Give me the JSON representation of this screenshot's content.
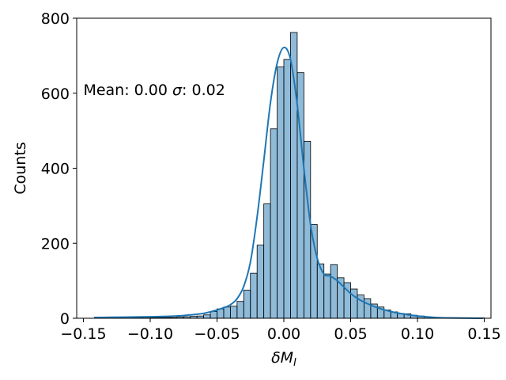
{
  "chart_data": {
    "type": "bar",
    "title": "",
    "xlabel": "δM_I",
    "xlabel_parts": {
      "base": "δM",
      "sub": "I"
    },
    "ylabel": "Counts",
    "xlim": [
      -0.155,
      0.155
    ],
    "ylim": [
      0,
      800
    ],
    "x_ticks": [
      -0.15,
      -0.1,
      -0.05,
      0.0,
      0.05,
      0.1,
      0.15
    ],
    "x_tick_labels": [
      "−0.15",
      "−0.10",
      "−0.05",
      "0.00",
      "0.05",
      "0.10",
      "0.15"
    ],
    "y_ticks": [
      0,
      200,
      400,
      600,
      800
    ],
    "y_tick_labels": [
      "0",
      "200",
      "400",
      "600",
      "800"
    ],
    "grid": false,
    "bar_color": "#1f77b4",
    "bar_fill_opacity": 0.5,
    "kde_color": "#1f77b4",
    "annotation": {
      "parts": [
        "Mean: 0.00 ",
        "σ",
        ": 0.02"
      ],
      "x": -0.15,
      "y": 610
    },
    "bin_width": 0.005,
    "bins_start": [
      -0.14,
      -0.135,
      -0.13,
      -0.125,
      -0.12,
      -0.115,
      -0.11,
      -0.105,
      -0.1,
      -0.095,
      -0.09,
      -0.085,
      -0.08,
      -0.075,
      -0.07,
      -0.065,
      -0.06,
      -0.055,
      -0.05,
      -0.045,
      -0.04,
      -0.035,
      -0.03,
      -0.025,
      -0.02,
      -0.015,
      -0.01,
      -0.005,
      0.0,
      0.005,
      0.01,
      0.015,
      0.02,
      0.025,
      0.03,
      0.035,
      0.04,
      0.045,
      0.05,
      0.055,
      0.06,
      0.065,
      0.07,
      0.075,
      0.08,
      0.085,
      0.09,
      0.095,
      0.1,
      0.105,
      0.11,
      0.115,
      0.12,
      0.125,
      0.13,
      0.135,
      0.14,
      0.145
    ],
    "counts": [
      1,
      1,
      1,
      1,
      1,
      2,
      2,
      1,
      2,
      2,
      2,
      2,
      3,
      4,
      5,
      6,
      9,
      18,
      25,
      30,
      32,
      45,
      75,
      120,
      195,
      305,
      505,
      670,
      690,
      762,
      655,
      472,
      250,
      145,
      118,
      143,
      108,
      95,
      78,
      62,
      52,
      38,
      30,
      22,
      17,
      13,
      12,
      8,
      6,
      4,
      2,
      2,
      1,
      1,
      1,
      0,
      1,
      1
    ],
    "kde": {
      "x": [
        -0.142,
        -0.12,
        -0.1,
        -0.08,
        -0.07,
        -0.06,
        -0.05,
        -0.045,
        -0.04,
        -0.035,
        -0.03,
        -0.025,
        -0.02,
        -0.015,
        -0.01,
        -0.005,
        0.0,
        0.005,
        0.01,
        0.015,
        0.02,
        0.025,
        0.03,
        0.035,
        0.04,
        0.045,
        0.05,
        0.055,
        0.06,
        0.07,
        0.08,
        0.09,
        0.1,
        0.11,
        0.12,
        0.149
      ],
      "y": [
        2,
        3,
        4,
        6,
        9,
        13,
        22,
        28,
        36,
        52,
        85,
        150,
        270,
        420,
        575,
        680,
        722,
        690,
        570,
        400,
        250,
        160,
        118,
        112,
        100,
        83,
        66,
        53,
        43,
        28,
        18,
        11,
        6,
        3,
        1,
        0
      ]
    }
  }
}
